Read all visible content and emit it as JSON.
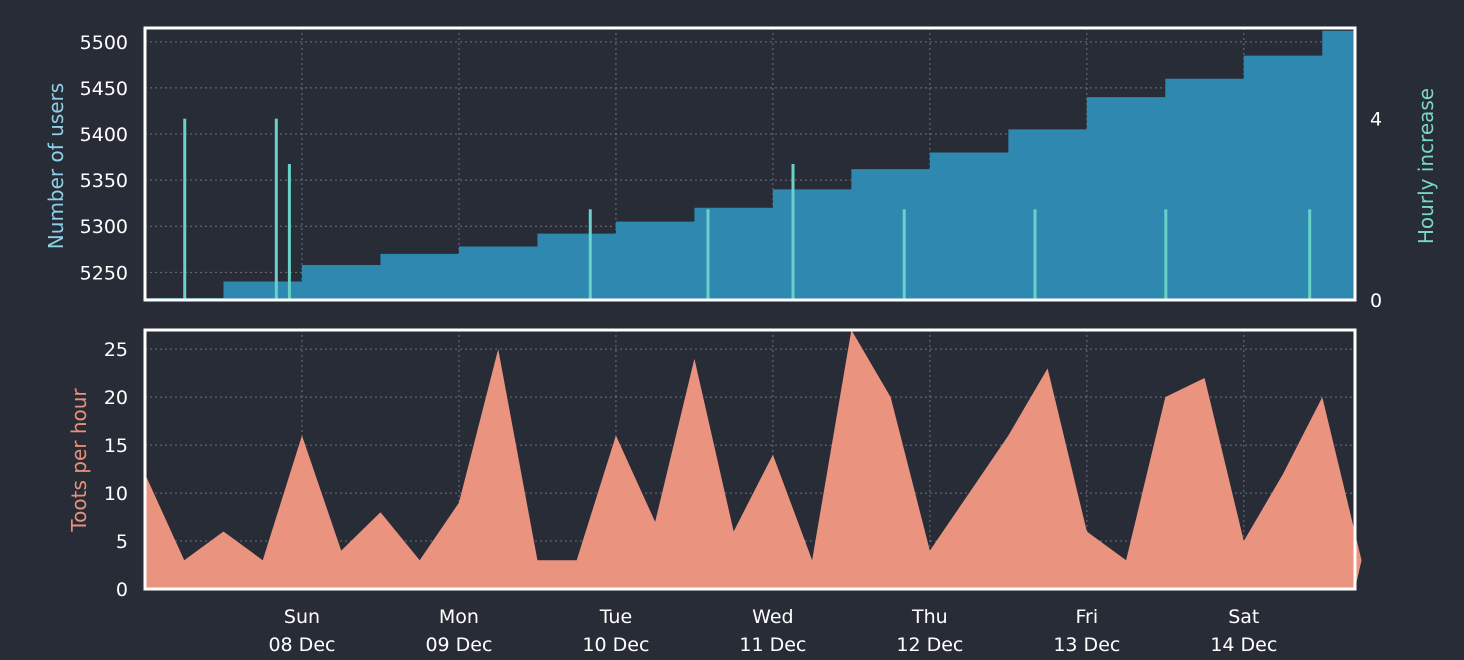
{
  "chart_data": [
    {
      "name": "users-panel",
      "type": "area",
      "ylabel": "Number of users",
      "y2label": "Hourly increase",
      "ylim": [
        5220,
        5515
      ],
      "y2lim": [
        0,
        6
      ],
      "yticks": [
        5250,
        5300,
        5350,
        5400,
        5450,
        5500
      ],
      "y2ticks": [
        0,
        4
      ],
      "grid": true,
      "colors": {
        "users": "#2e88b0",
        "hourly": "#69d2c8"
      },
      "series": [
        {
          "name": "Number of users",
          "x": [
            "07 Dec 00:00",
            "07 Dec 12:00",
            "08 Dec 00:00",
            "08 Dec 12:00",
            "09 Dec 00:00",
            "09 Dec 12:00",
            "10 Dec 00:00",
            "10 Dec 12:00",
            "11 Dec 00:00",
            "11 Dec 12:00",
            "12 Dec 00:00",
            "12 Dec 12:00",
            "13 Dec 00:00",
            "13 Dec 12:00",
            "14 Dec 00:00",
            "14 Dec 12:00"
          ],
          "values": [
            5222,
            5240,
            5258,
            5270,
            5278,
            5292,
            5305,
            5320,
            5340,
            5362,
            5380,
            5405,
            5440,
            5460,
            5485,
            5512
          ]
        },
        {
          "name": "Hourly increase",
          "x": [
            "07 Dec 06:00",
            "07 Dec 20:00",
            "07 Dec 22:00",
            "09 Dec 20:00",
            "10 Dec 14:00",
            "11 Dec 03:00",
            "11 Dec 20:00",
            "12 Dec 16:00",
            "13 Dec 12:00",
            "14 Dec 10:00"
          ],
          "values": [
            4,
            4,
            3,
            2,
            2,
            3,
            2,
            2,
            2,
            2
          ]
        }
      ]
    },
    {
      "name": "toots-panel",
      "type": "area",
      "ylabel": "Toots per hour",
      "ylim": [
        0,
        27
      ],
      "yticks": [
        0,
        5,
        10,
        15,
        20,
        25
      ],
      "grid": true,
      "colors": {
        "toots": "#ea9480"
      },
      "series": [
        {
          "name": "Toots per hour",
          "x": [
            "07 Dec 00:00",
            "07 Dec 06:00",
            "07 Dec 12:00",
            "07 Dec 18:00",
            "08 Dec 00:00",
            "08 Dec 06:00",
            "08 Dec 12:00",
            "08 Dec 18:00",
            "09 Dec 00:00",
            "09 Dec 06:00",
            "09 Dec 12:00",
            "09 Dec 18:00",
            "10 Dec 00:00",
            "10 Dec 06:00",
            "10 Dec 12:00",
            "10 Dec 18:00",
            "11 Dec 00:00",
            "11 Dec 06:00",
            "11 Dec 12:00",
            "11 Dec 18:00",
            "12 Dec 00:00",
            "12 Dec 06:00",
            "12 Dec 12:00",
            "12 Dec 18:00",
            "13 Dec 00:00",
            "13 Dec 06:00",
            "13 Dec 12:00",
            "13 Dec 18:00",
            "14 Dec 00:00",
            "14 Dec 06:00",
            "14 Dec 12:00",
            "14 Dec 18:00"
          ],
          "values": [
            12,
            3,
            6,
            3,
            16,
            4,
            8,
            3,
            9,
            25,
            3,
            3,
            16,
            7,
            24,
            6,
            14,
            3,
            27,
            20,
            4,
            10,
            16,
            23,
            6,
            3,
            20,
            22,
            5,
            12,
            20,
            3
          ]
        }
      ]
    }
  ],
  "x_axis": {
    "ticks": [
      {
        "day": "Sun",
        "date": "08 Dec"
      },
      {
        "day": "Mon",
        "date": "09 Dec"
      },
      {
        "day": "Tue",
        "date": "10 Dec"
      },
      {
        "day": "Wed",
        "date": "11 Dec"
      },
      {
        "day": "Thu",
        "date": "12 Dec"
      },
      {
        "day": "Fri",
        "date": "13 Dec"
      },
      {
        "day": "Sat",
        "date": "14 Dec"
      }
    ]
  }
}
